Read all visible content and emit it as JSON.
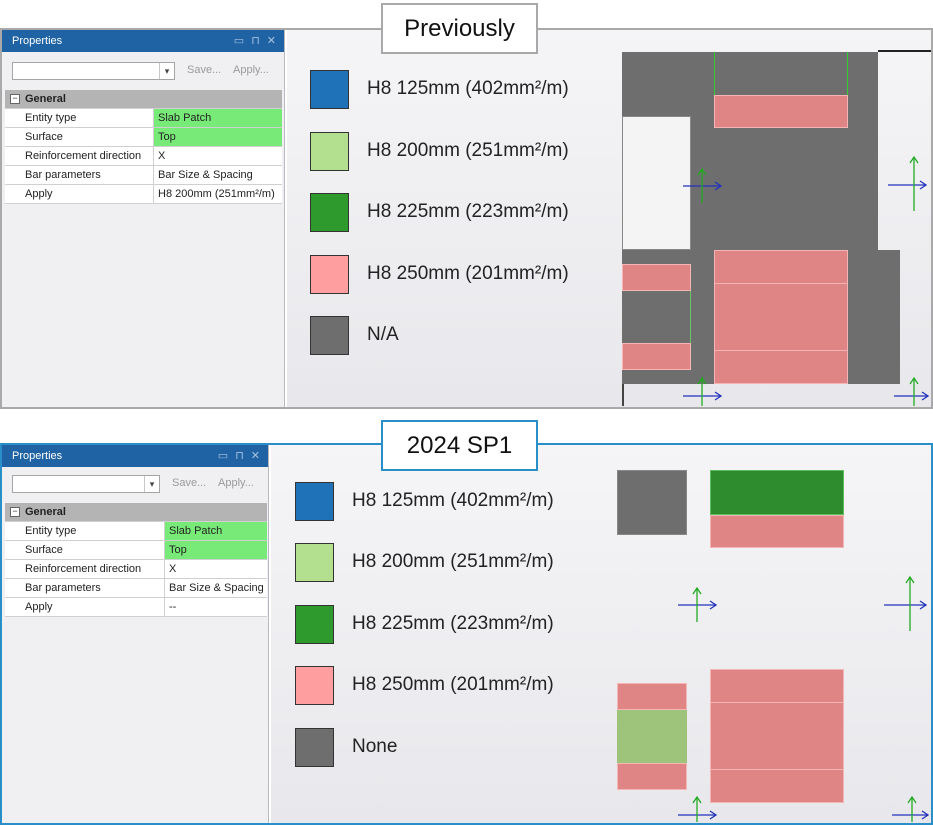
{
  "panels": [
    {
      "caption": "Previously",
      "properties": {
        "title": "Properties",
        "save_label": "Save...",
        "apply_label": "Apply...",
        "category": "General",
        "rows": [
          {
            "key": "Entity type",
            "value": "Slab Patch"
          },
          {
            "key": "Surface",
            "value": "Top"
          },
          {
            "key": "Reinforcement direction",
            "value": "X"
          },
          {
            "key": "Bar parameters",
            "value": "Bar Size & Spacing"
          },
          {
            "key": "Apply",
            "value": "H8 200mm (251mm²/m)"
          }
        ]
      },
      "legend": [
        {
          "label": "H8 125mm (402mm²/m)",
          "color": "#1f72b8"
        },
        {
          "label": "H8 200mm (251mm²/m)",
          "color": "#b3e08e"
        },
        {
          "label": "H8 225mm (223mm²/m)",
          "color": "#2e9a2e"
        },
        {
          "label": "H8 250mm (201mm²/m)",
          "color": "#ff9e9e"
        },
        {
          "label": "N/A",
          "color": "#6e6e6e"
        }
      ]
    },
    {
      "caption": "2024 SP1",
      "properties": {
        "title": "Properties",
        "save_label": "Save...",
        "apply_label": "Apply...",
        "category": "General",
        "rows": [
          {
            "key": "Entity type",
            "value": "Slab Patch"
          },
          {
            "key": "Surface",
            "value": "Top"
          },
          {
            "key": "Reinforcement direction",
            "value": "X"
          },
          {
            "key": "Bar parameters",
            "value": "Bar Size & Spacing"
          },
          {
            "key": "Apply",
            "value": "--"
          }
        ]
      },
      "legend": [
        {
          "label": "H8 125mm (402mm²/m)",
          "color": "#1f72b8"
        },
        {
          "label": "H8 200mm (251mm²/m)",
          "color": "#b3e08e"
        },
        {
          "label": "H8 225mm (223mm²/m)",
          "color": "#2e9a2e"
        },
        {
          "label": "H8 250mm (201mm²/m)",
          "color": "#ff9e9e"
        },
        {
          "label": "None",
          "color": "#6e6e6e"
        }
      ]
    }
  ],
  "colors": {
    "highlight_green": "#78ea78",
    "title_bar_blue": "#1f63a4",
    "patch_pink": "#e08585",
    "patch_grey": "#6e6e6e",
    "patch_dark_green": "#2e8b2e",
    "patch_light_green": "#9dc47a",
    "axis_blue": "#2233bb",
    "axis_green": "#22aa22"
  },
  "icons": [
    "minimize-icon",
    "pin-icon",
    "close-icon",
    "dropdown-arrow-icon",
    "collapse-minus-icon",
    "axis-cross-icon"
  ]
}
